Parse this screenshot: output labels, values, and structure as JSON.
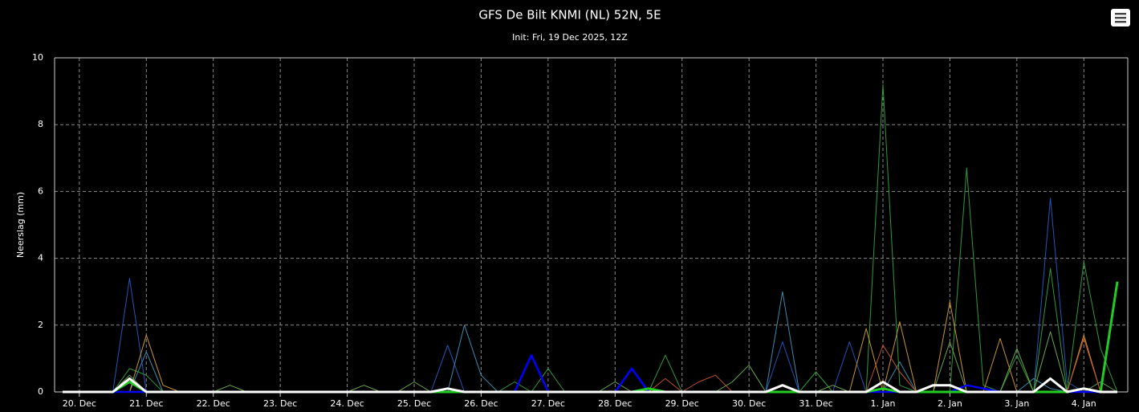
{
  "chart_data": {
    "type": "line",
    "title": "GFS De Bilt KNMI (NL) 52N, 5E",
    "subtitle": "Init: Fri, 19 Dec 2025, 12Z",
    "y_label": "Neerslag (mm)",
    "categories": [
      null,
      "20. Dec",
      null,
      null,
      null,
      "21. Dec",
      null,
      null,
      null,
      "22. Dec",
      null,
      null,
      null,
      "23. Dec",
      null,
      null,
      null,
      "24. Dec",
      null,
      null,
      null,
      "25. Dec",
      null,
      null,
      null,
      "26. Dec",
      null,
      null,
      null,
      "27. Dec",
      null,
      null,
      null,
      "28. Dec",
      null,
      null,
      null,
      "29. Dec",
      null,
      null,
      null,
      "30. Dec",
      null,
      null,
      null,
      "31. Dec",
      null,
      null,
      null,
      "1. Jan",
      null,
      null,
      null,
      "2. Jan",
      null,
      null,
      null,
      "3. Jan",
      null,
      null,
      null,
      "4. Jan",
      null,
      null
    ],
    "ylim": [
      0,
      10
    ],
    "yticks": [
      0,
      2,
      4,
      6,
      8,
      10
    ],
    "grid": true,
    "series": [
      {
        "color": "#2255bb",
        "linewidth": 1,
        "values": [
          0,
          0,
          0,
          0,
          3.4,
          0,
          0,
          0,
          0,
          0,
          0,
          0,
          0,
          0,
          0,
          0,
          0,
          0,
          0,
          0,
          0,
          0,
          0,
          1.4,
          0,
          0,
          0,
          0,
          0,
          0,
          0,
          0,
          0,
          0,
          0,
          0,
          0,
          0,
          0,
          0,
          0,
          0,
          0,
          1.5,
          0,
          0,
          0,
          1.5,
          0,
          0,
          0,
          0,
          0,
          0,
          0,
          0,
          0,
          0,
          0,
          5.8,
          0.3,
          0,
          0,
          0
        ]
      },
      {
        "color": "#3a8ab0",
        "linewidth": 1,
        "values": [
          0,
          0,
          0,
          0,
          0,
          1.2,
          0,
          0,
          0,
          0,
          0,
          0,
          0,
          0,
          0,
          0,
          0,
          0,
          0,
          0,
          0,
          0,
          0,
          0,
          2.0,
          0.5,
          0,
          0,
          0,
          0,
          0,
          0,
          0,
          0,
          0,
          0,
          0,
          0,
          0,
          0,
          0,
          0,
          0,
          3.0,
          0,
          0,
          0,
          0,
          0,
          0,
          0.9,
          0,
          0,
          0,
          0,
          0,
          0,
          0,
          0.4,
          0.1,
          0,
          0,
          0,
          0
        ]
      },
      {
        "color": "#2e9a3a",
        "linewidth": 1,
        "values": [
          0,
          0,
          0,
          0,
          0.7,
          0.5,
          0,
          0,
          0,
          0,
          0,
          0,
          0,
          0,
          0,
          0,
          0,
          0,
          0,
          0,
          0,
          0,
          0,
          0,
          0,
          0,
          0,
          0.3,
          0,
          0.7,
          0,
          0,
          0,
          0,
          0,
          0,
          1.1,
          0,
          0,
          0,
          0,
          0,
          0,
          0,
          0,
          0.6,
          0,
          0,
          0,
          9.2,
          0.2,
          0,
          0,
          0,
          6.7,
          0.2,
          0,
          1.1,
          0,
          3.7,
          0,
          3.9,
          1.3,
          0
        ]
      },
      {
        "color": "#c8962a",
        "linewidth": 1,
        "values": [
          0,
          0,
          0,
          0,
          0,
          1.7,
          0.2,
          0,
          0,
          0,
          0,
          0,
          0,
          0,
          0,
          0,
          0,
          0,
          0,
          0,
          0,
          0,
          0,
          0,
          0,
          0,
          0,
          0,
          0,
          0,
          0,
          0,
          0,
          0,
          0,
          0,
          0,
          0,
          0,
          0,
          0,
          0,
          0,
          0,
          0,
          0,
          0,
          0,
          1.9,
          0,
          2.1,
          0,
          0,
          2.7,
          0,
          0,
          1.6,
          0,
          0,
          0,
          0,
          1.7,
          0,
          0
        ]
      },
      {
        "color": "#6aa84f",
        "linewidth": 1,
        "values": [
          0,
          0,
          0,
          0,
          0.5,
          0,
          0,
          0,
          0,
          0,
          0.2,
          0,
          0,
          0,
          0,
          0,
          0,
          0,
          0.2,
          0,
          0,
          0.3,
          0,
          0,
          0,
          0,
          0,
          0,
          0,
          0,
          0,
          0,
          0,
          0.3,
          0,
          0,
          0,
          0,
          0,
          0,
          0.3,
          0.8,
          0,
          0,
          0,
          0,
          0.2,
          0,
          0,
          0,
          0,
          0,
          0,
          1.5,
          0,
          0,
          0,
          1.3,
          0,
          1.8,
          0,
          0,
          0.3,
          0
        ]
      },
      {
        "color": "#c0502a",
        "linewidth": 1,
        "values": [
          0,
          0,
          0,
          0,
          0,
          0,
          0,
          0,
          0,
          0,
          0,
          0,
          0,
          0,
          0,
          0,
          0,
          0,
          0,
          0,
          0,
          0,
          0,
          0,
          0,
          0,
          0,
          0,
          0,
          0,
          0,
          0,
          0,
          0,
          0,
          0,
          0.4,
          0,
          0.3,
          0.5,
          0,
          0,
          0,
          0,
          0,
          0,
          0,
          0,
          0,
          1.4,
          0.6,
          0,
          0,
          0,
          0,
          0,
          0,
          0,
          0,
          0,
          0,
          1.6,
          0,
          0
        ]
      },
      {
        "color": "#0000ff",
        "linewidth": 2.5,
        "values": [
          0,
          0,
          0,
          0,
          0,
          0,
          0,
          0,
          0,
          0,
          0,
          0,
          0,
          0,
          0,
          0,
          0,
          0,
          0,
          0,
          0,
          0,
          0,
          0,
          0,
          0,
          0,
          0,
          1.1,
          0,
          0,
          0,
          0,
          0,
          0.7,
          0,
          0,
          0,
          0,
          0,
          0,
          0,
          0,
          0,
          0,
          0,
          0,
          0,
          0,
          0,
          0,
          0,
          0,
          0,
          0.2,
          0.1,
          0,
          0,
          0,
          0,
          0,
          0,
          0,
          0
        ]
      },
      {
        "color": "#22cc22",
        "linewidth": 3,
        "values": [
          0,
          0,
          0,
          0,
          0.3,
          0,
          0,
          0,
          0,
          0,
          0,
          0,
          0,
          0,
          0,
          0,
          0,
          0,
          0,
          0,
          0,
          0,
          0,
          0,
          0,
          0,
          0,
          0,
          0,
          0,
          0,
          0,
          0,
          0,
          0,
          0.1,
          0,
          0,
          0,
          0,
          0,
          0,
          0,
          0,
          0,
          0,
          0,
          0,
          0,
          0.1,
          0,
          0,
          0,
          0,
          0,
          0,
          0,
          0,
          0,
          0,
          0,
          0.1,
          0,
          3.3
        ]
      },
      {
        "color": "#ffffff",
        "linewidth": 3,
        "values": [
          0,
          0,
          0,
          0,
          0.4,
          0,
          0,
          0,
          0,
          0,
          0,
          0,
          0,
          0,
          0,
          0,
          0,
          0,
          0,
          0,
          0,
          0,
          0,
          0.1,
          0,
          0,
          0,
          0,
          0,
          0,
          0,
          0,
          0,
          0,
          0,
          0,
          0,
          0,
          0,
          0,
          0,
          0,
          0,
          0.2,
          0,
          0,
          0,
          0,
          0,
          0.3,
          0,
          0,
          0.2,
          0.2,
          0,
          0,
          0,
          0,
          0,
          0.4,
          0,
          0.1,
          0,
          0
        ]
      }
    ]
  }
}
